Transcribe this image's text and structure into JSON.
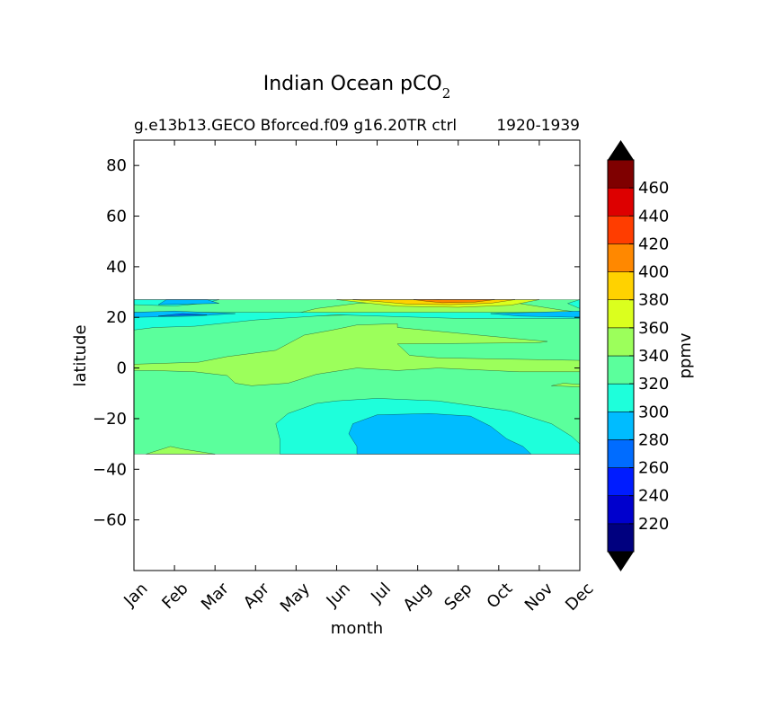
{
  "chart_data": {
    "type": "heatmap",
    "title": "Indian Ocean pCO",
    "title_subscript": "2",
    "subtitle_left": "g.e13b13.GECO Bforced.f09 g16.20TR ctrl",
    "subtitle_right": "1920-1939",
    "xlabel": "month",
    "ylabel": "latitude",
    "colorbar_label": "ppmv",
    "x_ticks": [
      "Jan",
      "Feb",
      "Mar",
      "Apr",
      "May",
      "Jun",
      "Jul",
      "Aug",
      "Sep",
      "Oct",
      "Nov",
      "Dec"
    ],
    "y_ticks": [
      80,
      60,
      40,
      20,
      0,
      -20,
      -40,
      -60
    ],
    "y_tick_labels": [
      "80",
      "60",
      "40",
      "20",
      "0",
      "−20",
      "−40",
      "−60"
    ],
    "xlim": [
      0,
      11
    ],
    "ylim": [
      -80,
      90
    ],
    "data_lat_range": [
      -34,
      27
    ],
    "levels": [
      200,
      220,
      240,
      260,
      280,
      300,
      320,
      340,
      360,
      380,
      400,
      420,
      440,
      460,
      480
    ],
    "colorbar_tick_values": [
      220,
      240,
      260,
      280,
      300,
      320,
      340,
      360,
      380,
      400,
      420,
      440,
      460
    ],
    "colorbar_tick_labels": [
      "220",
      "240",
      "260",
      "280",
      "300",
      "320",
      "340",
      "360",
      "380",
      "400",
      "420",
      "440",
      "460"
    ],
    "colors": [
      "#00007f",
      "#0000cd",
      "#001cff",
      "#006cff",
      "#00bcff",
      "#1effdb",
      "#5bff9c",
      "#9cff5b",
      "#dbff1e",
      "#ffd200",
      "#ff8800",
      "#ff3d00",
      "#dd0000",
      "#7f0000"
    ],
    "extend_colors": {
      "under": "#000000",
      "over": "#000000"
    },
    "background_level": 320,
    "regions": [
      {
        "level": 340,
        "points": [
          [
            0,
            -1
          ],
          [
            0,
            1.5
          ],
          [
            1.6,
            2.3
          ],
          [
            2.3,
            4.5
          ],
          [
            3.5,
            7
          ],
          [
            4.2,
            13
          ],
          [
            4.9,
            15
          ],
          [
            5.5,
            17
          ],
          [
            6.5,
            17.5
          ],
          [
            6.5,
            16
          ],
          [
            9.5,
            11.5
          ],
          [
            10.2,
            10.5
          ],
          [
            10,
            10
          ],
          [
            6.5,
            9.5
          ],
          [
            6.8,
            5
          ],
          [
            7.5,
            4
          ],
          [
            11,
            3
          ],
          [
            11,
            -1.5
          ],
          [
            9.5,
            -1.5
          ],
          [
            7.5,
            0
          ],
          [
            6.5,
            -1
          ],
          [
            5.5,
            0
          ],
          [
            4.5,
            -2.5
          ],
          [
            4,
            -5
          ],
          [
            3.8,
            -6
          ],
          [
            2.9,
            -7
          ],
          [
            2.5,
            -6
          ],
          [
            2.3,
            -3
          ],
          [
            1.5,
            -1.5
          ],
          [
            0.5,
            -1
          ]
        ]
      },
      {
        "level": 340,
        "points": [
          [
            10.6,
            -6
          ],
          [
            11,
            -6.5
          ],
          [
            11,
            -7.5
          ],
          [
            10.3,
            -7
          ]
        ]
      },
      {
        "level": 340,
        "points": [
          [
            0.3,
            -34
          ],
          [
            2,
            -34
          ],
          [
            1.2,
            -32
          ],
          [
            0.9,
            -31
          ]
        ]
      },
      {
        "level": 340,
        "points": [
          [
            0,
            19.5
          ],
          [
            0,
            20.5
          ],
          [
            2.5,
            21
          ],
          [
            4,
            21.5
          ],
          [
            4.5,
            23.5
          ],
          [
            5.5,
            25.5
          ],
          [
            7.5,
            27
          ],
          [
            9.5,
            25.5
          ],
          [
            10.5,
            23
          ],
          [
            11,
            22
          ],
          [
            11,
            20
          ],
          [
            8,
            20.5
          ],
          [
            5.5,
            21
          ],
          [
            3,
            20
          ]
        ]
      },
      {
        "level": 360,
        "points": [
          [
            5,
            27
          ],
          [
            10,
            27
          ],
          [
            9.3,
            24.8
          ],
          [
            8,
            24
          ],
          [
            6.5,
            24.4
          ],
          [
            5.8,
            25.6
          ]
        ]
      },
      {
        "level": 380,
        "points": [
          [
            5.4,
            27
          ],
          [
            9.4,
            27
          ],
          [
            8.8,
            25.6
          ],
          [
            7.8,
            25
          ],
          [
            6.8,
            25.2
          ],
          [
            6,
            26.3
          ]
        ]
      },
      {
        "level": 400,
        "points": [
          [
            6.9,
            27
          ],
          [
            8.9,
            27
          ],
          [
            8.4,
            26
          ],
          [
            7.6,
            25.8
          ],
          [
            7.2,
            26.4
          ]
        ]
      },
      {
        "level": 300,
        "points": [
          [
            0,
            15
          ],
          [
            0,
            22
          ],
          [
            11,
            22
          ],
          [
            11,
            19.5
          ],
          [
            8,
            19.6
          ],
          [
            5,
            21
          ],
          [
            3,
            19
          ],
          [
            1.5,
            16.5
          ],
          [
            0.5,
            16
          ]
        ]
      },
      {
        "level": 300,
        "points": [
          [
            0,
            25
          ],
          [
            0,
            27
          ],
          [
            2.1,
            27
          ],
          [
            1.7,
            25.5
          ],
          [
            1,
            24.5
          ]
        ]
      },
      {
        "level": 300,
        "points": [
          [
            10.7,
            25.5
          ],
          [
            11,
            27
          ],
          [
            11,
            23.5
          ]
        ]
      },
      {
        "level": 300,
        "points": [
          [
            3.6,
            -34
          ],
          [
            11,
            -34
          ],
          [
            11,
            -30
          ],
          [
            10.8,
            -27
          ],
          [
            10.3,
            -22
          ],
          [
            9.3,
            -17
          ],
          [
            7.5,
            -13
          ],
          [
            6,
            -12
          ],
          [
            5,
            -13
          ],
          [
            4.5,
            -14
          ],
          [
            3.8,
            -18
          ],
          [
            3.5,
            -22
          ],
          [
            3.6,
            -28
          ]
        ]
      },
      {
        "level": 280,
        "points": [
          [
            0,
            20
          ],
          [
            0,
            22
          ],
          [
            1,
            22.5
          ],
          [
            2.5,
            21.5
          ],
          [
            1.5,
            20.5
          ]
        ]
      },
      {
        "level": 280,
        "points": [
          [
            8.8,
            21.5
          ],
          [
            11,
            22.5
          ],
          [
            11,
            20
          ],
          [
            9.5,
            20.5
          ]
        ]
      },
      {
        "level": 280,
        "points": [
          [
            0.6,
            25
          ],
          [
            2.1,
            25.5
          ],
          [
            1.8,
            27
          ],
          [
            0.8,
            27
          ]
        ]
      },
      {
        "level": 280,
        "points": [
          [
            5.5,
            -34
          ],
          [
            9.8,
            -34
          ],
          [
            9.6,
            -31
          ],
          [
            9.2,
            -28
          ],
          [
            8.8,
            -23
          ],
          [
            8.3,
            -19
          ],
          [
            7.3,
            -18
          ],
          [
            6,
            -18.5
          ],
          [
            5.4,
            -22
          ],
          [
            5.3,
            -26
          ],
          [
            5.5,
            -31
          ]
        ]
      },
      {
        "level": 260,
        "points": [
          [
            0.6,
            20.5
          ],
          [
            1.2,
            21.5
          ],
          [
            1.8,
            21
          ]
        ]
      }
    ]
  }
}
